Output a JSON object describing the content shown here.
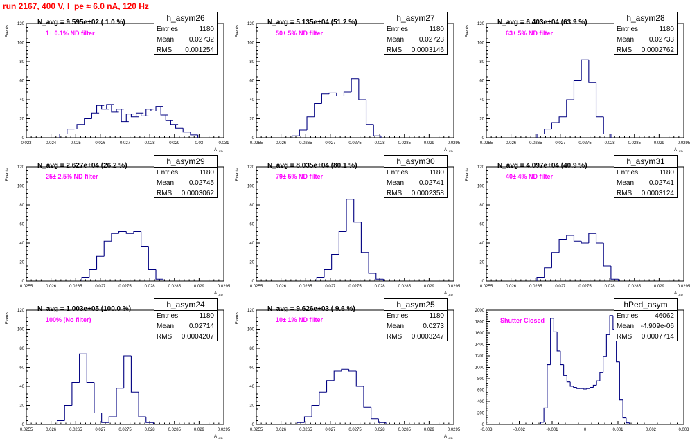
{
  "run_title": "run 2167,   400 V, I_pe ≈ 6.0 nA, 120 Hz",
  "stat_labels": {
    "entries": "Entries",
    "mean": "Mean",
    "rms": "RMS"
  },
  "colors": {
    "hist_line": "#000080",
    "title": "#ff0000",
    "filter_text": "#ff00ff",
    "frame": "#000000"
  },
  "chart_data": [
    {
      "type": "bar",
      "name": "h_asym26",
      "n_avg": "N_avg = 9.595e+02 ( 1.0 %)",
      "filter": "1± 0.1% ND filter",
      "entries": "1180",
      "mean": "0.02732",
      "rms": "0.001254",
      "ylabel": "Events",
      "xlabel": "A",
      "xlabel_sub": "LED",
      "xlim": [
        0.023,
        0.031
      ],
      "ylim": [
        0,
        120
      ],
      "xticks": [
        "0.023",
        "0.024",
        "0.025",
        "0.026",
        "0.027",
        "0.028",
        "0.029",
        "0.03",
        "0.031"
      ],
      "yticks": [
        "0",
        "20",
        "40",
        "60",
        "80",
        "100",
        "120"
      ],
      "x": [
        0.0245,
        0.0248,
        0.0252,
        0.0255,
        0.0258,
        0.026,
        0.0262,
        0.0264,
        0.0266,
        0.0268,
        0.027,
        0.0272,
        0.0274,
        0.0276,
        0.0278,
        0.028,
        0.0282,
        0.0284,
        0.0286,
        0.0288,
        0.029,
        0.0292,
        0.0295,
        0.0298
      ],
      "values": [
        4,
        9,
        14,
        20,
        26,
        34,
        30,
        35,
        27,
        30,
        17,
        25,
        22,
        26,
        23,
        30,
        28,
        33,
        24,
        18,
        14,
        10,
        6,
        3
      ]
    },
    {
      "type": "bar",
      "name": "h_asym27",
      "n_avg": "N_avg = 5.135e+04 (51.2 %)",
      "filter": "50± 5% ND filter",
      "entries": "1180",
      "mean": "0.02723",
      "rms": "0.0003146",
      "ylabel": "Events",
      "xlabel": "A",
      "xlabel_sub": "LED",
      "xlim": [
        0.0255,
        0.0295
      ],
      "ylim": [
        0,
        120
      ],
      "xticks": [
        "0.0255",
        "0.026",
        "0.0265",
        "0.027",
        "0.0275",
        "0.028",
        "0.0285",
        "0.029",
        "0.0295"
      ],
      "yticks": [
        "0",
        "20",
        "40",
        "60",
        "80",
        "100",
        "120"
      ],
      "x": [
        0.0263,
        0.02645,
        0.0266,
        0.02675,
        0.0269,
        0.02705,
        0.0272,
        0.02735,
        0.0275,
        0.02765,
        0.0278,
        0.02795
      ],
      "values": [
        2,
        8,
        22,
        36,
        46,
        47,
        44,
        48,
        62,
        40,
        14,
        2
      ]
    },
    {
      "type": "bar",
      "name": "h_asym28",
      "n_avg": "N_avg = 6.403e+04 (63.9 %)",
      "filter": "63± 5% ND filter",
      "entries": "1180",
      "mean": "0.02733",
      "rms": "0.0002762",
      "ylabel": "Events",
      "xlabel": "A",
      "xlabel_sub": "LED",
      "xlim": [
        0.0255,
        0.0295
      ],
      "ylim": [
        0,
        120
      ],
      "xticks": [
        "0.0255",
        "0.026",
        "0.0265",
        "0.027",
        "0.0275",
        "0.028",
        "0.0285",
        "0.029",
        "0.0295"
      ],
      "yticks": [
        "0",
        "20",
        "40",
        "60",
        "80",
        "100",
        "120"
      ],
      "x": [
        0.0266,
        0.02675,
        0.0269,
        0.02705,
        0.0272,
        0.02735,
        0.0275,
        0.02765,
        0.0278,
        0.02795
      ],
      "values": [
        4,
        9,
        16,
        22,
        40,
        60,
        82,
        58,
        22,
        4
      ]
    },
    {
      "type": "bar",
      "name": "h_asym29",
      "n_avg": "N_avg = 2.627e+04 (26.2 %)",
      "filter": "25± 2.5% ND filter",
      "entries": "1180",
      "mean": "0.02745",
      "rms": "0.0003062",
      "ylabel": "Events",
      "xlabel": "A",
      "xlabel_sub": "LED",
      "xlim": [
        0.0255,
        0.0295
      ],
      "ylim": [
        0,
        120
      ],
      "xticks": [
        "0.0255",
        "0.026",
        "0.0265",
        "0.027",
        "0.0275",
        "0.028",
        "0.0285",
        "0.029",
        "0.0295"
      ],
      "yticks": [
        "0",
        "20",
        "40",
        "60",
        "80",
        "100",
        "120"
      ],
      "x": [
        0.0267,
        0.02685,
        0.027,
        0.02715,
        0.0273,
        0.02745,
        0.0276,
        0.02775,
        0.0279,
        0.02805,
        0.0282
      ],
      "values": [
        4,
        12,
        26,
        42,
        50,
        52,
        50,
        52,
        36,
        12,
        2
      ]
    },
    {
      "type": "bar",
      "name": "h_asym30",
      "n_avg": "N_avg = 8.035e+04 (80.1 %)",
      "filter": "79± 5% ND filter",
      "entries": "1180",
      "mean": "0.02741",
      "rms": "0.0002358",
      "ylabel": "Events",
      "xlabel": "A",
      "xlabel_sub": "LED",
      "xlim": [
        0.0255,
        0.0295
      ],
      "ylim": [
        0,
        120
      ],
      "xticks": [
        "0.0255",
        "0.026",
        "0.0265",
        "0.027",
        "0.0275",
        "0.028",
        "0.0285",
        "0.029",
        "0.0295"
      ],
      "yticks": [
        "0",
        "20",
        "40",
        "60",
        "80",
        "100",
        "120"
      ],
      "x": [
        0.0268,
        0.02695,
        0.0271,
        0.02725,
        0.0274,
        0.02755,
        0.0277,
        0.02785,
        0.028
      ],
      "values": [
        4,
        12,
        28,
        52,
        86,
        62,
        30,
        8,
        2
      ]
    },
    {
      "type": "bar",
      "name": "h_asym31",
      "n_avg": "N_avg = 4.097e+04 (40.9 %)",
      "filter": "40± 4% ND filter",
      "entries": "1180",
      "mean": "0.02741",
      "rms": "0.0003124",
      "ylabel": "Events",
      "xlabel": "A",
      "xlabel_sub": "LED",
      "xlim": [
        0.0255,
        0.0295
      ],
      "ylim": [
        0,
        120
      ],
      "xticks": [
        "0.0255",
        "0.026",
        "0.0265",
        "0.027",
        "0.0275",
        "0.028",
        "0.0285",
        "0.029",
        "0.0295"
      ],
      "yticks": [
        "0",
        "20",
        "40",
        "60",
        "80",
        "100",
        "120"
      ],
      "x": [
        0.0266,
        0.02675,
        0.0269,
        0.02705,
        0.0272,
        0.02735,
        0.0275,
        0.02765,
        0.0278,
        0.02795,
        0.0281
      ],
      "values": [
        4,
        14,
        30,
        44,
        48,
        42,
        40,
        50,
        40,
        16,
        2
      ]
    },
    {
      "type": "bar",
      "name": "h_asym24",
      "n_avg": "N_avg = 1.003e+05 (100.0 %)",
      "filter": "100% (No filter)",
      "entries": "1180",
      "mean": "0.02714",
      "rms": "0.0004207",
      "ylabel": "Events",
      "xlabel": "A",
      "xlabel_sub": "LED",
      "xlim": [
        0.0255,
        0.0295
      ],
      "ylim": [
        0,
        120
      ],
      "xticks": [
        "0.0255",
        "0.026",
        "0.0265",
        "0.027",
        "0.0275",
        "0.028",
        "0.0285",
        "0.029",
        "0.0295"
      ],
      "yticks": [
        "0",
        "20",
        "40",
        "60",
        "80",
        "100",
        "120"
      ],
      "x": [
        0.0262,
        0.02635,
        0.0265,
        0.02665,
        0.0268,
        0.02695,
        0.0271,
        0.02725,
        0.0274,
        0.02755,
        0.0277,
        0.02785,
        0.028
      ],
      "values": [
        4,
        20,
        44,
        74,
        44,
        12,
        2,
        8,
        38,
        72,
        34,
        8,
        2
      ]
    },
    {
      "type": "bar",
      "name": "h_asym25",
      "n_avg": "N_avg = 9.626e+03 ( 9.6 %)",
      "filter": "10± 1% ND filter",
      "entries": "1180",
      "mean": "0.0273",
      "rms": "0.0003247",
      "ylabel": "Events",
      "xlabel": "A",
      "xlabel_sub": "LED",
      "xlim": [
        0.0255,
        0.0295
      ],
      "ylim": [
        0,
        120
      ],
      "xticks": [
        "0.0255",
        "0.026",
        "0.0265",
        "0.027",
        "0.0275",
        "0.028",
        "0.0285",
        "0.029",
        "0.0295"
      ],
      "yticks": [
        "0",
        "20",
        "40",
        "60",
        "80",
        "100",
        "120"
      ],
      "x": [
        0.0264,
        0.02655,
        0.0267,
        0.02685,
        0.027,
        0.02715,
        0.0273,
        0.02745,
        0.0276,
        0.02775,
        0.0279,
        0.02805
      ],
      "values": [
        2,
        8,
        20,
        34,
        46,
        56,
        58,
        56,
        40,
        18,
        6,
        2
      ]
    },
    {
      "type": "bar",
      "name": "hPed_asym",
      "n_avg": "",
      "filter": "Shutter Closed",
      "entries": "46062",
      "mean": "-4.909e-06",
      "rms": "0.0007714",
      "ylabel": "",
      "xlabel": "",
      "xlabel_sub": "",
      "xlim": [
        -0.003,
        0.003
      ],
      "ylim": [
        0,
        2100
      ],
      "xticks": [
        "-0.003",
        "-0.002",
        "-0.001",
        "0",
        "0.001",
        "0.002",
        "0.003"
      ],
      "yticks": [
        "0",
        "200",
        "400",
        "600",
        "800",
        "1000",
        "1200",
        "1400",
        "1600",
        "1800",
        "2000"
      ],
      "x": [
        -0.0013,
        -0.0012,
        -0.0011,
        -0.001,
        -0.0009,
        -0.0008,
        -0.0007,
        -0.0006,
        -0.0005,
        -0.0004,
        -0.0003,
        -0.0002,
        -0.0001,
        0.0,
        0.0001,
        0.0002,
        0.0003,
        0.0004,
        0.0005,
        0.0006,
        0.0007,
        0.0008,
        0.0009,
        0.001,
        0.0011,
        0.0012,
        0.0013
      ],
      "values": [
        40,
        300,
        1100,
        1950,
        1700,
        1350,
        1100,
        900,
        780,
        700,
        680,
        660,
        660,
        650,
        660,
        680,
        720,
        800,
        950,
        1250,
        1650,
        2000,
        1750,
        1150,
        450,
        120,
        30
      ]
    }
  ]
}
